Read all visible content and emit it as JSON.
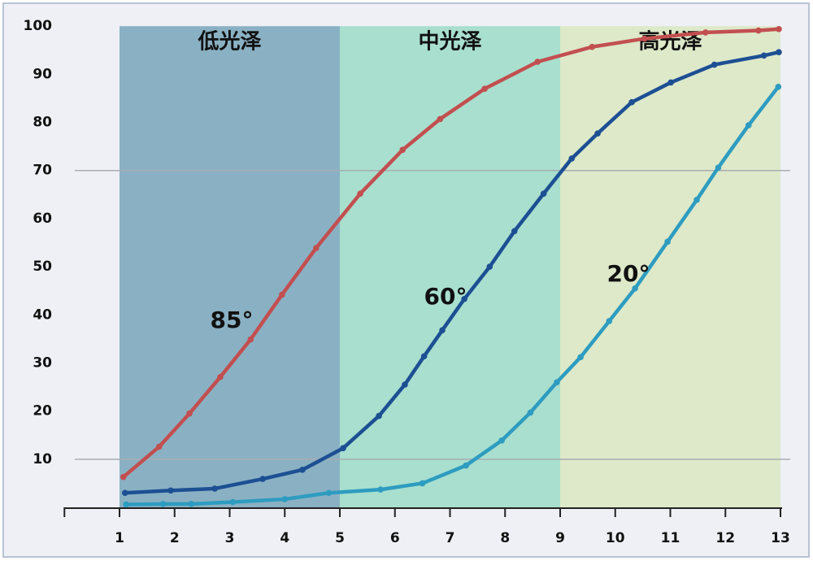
{
  "chart_data": {
    "type": "line",
    "regions": [
      {
        "label": "低光泽",
        "from": 1,
        "to": 5,
        "color": "#8ab1c3"
      },
      {
        "label": "中光泽",
        "from": 5,
        "to": 9,
        "color": "#a8dfce"
      },
      {
        "label": "高光泽",
        "from": 9,
        "to": 13,
        "color": "#dde9c9"
      }
    ],
    "series": [
      {
        "name": "85°",
        "color": "#c24f50",
        "x": [
          1.07,
          1.72,
          2.27,
          2.83,
          3.38,
          3.95,
          4.57,
          5.37,
          6.14,
          6.82,
          7.63,
          8.59,
          9.58,
          10.53,
          11.64,
          12.6,
          12.97
        ],
        "values": [
          6.3,
          12.6,
          19.5,
          27.1,
          34.9,
          44.2,
          53.9,
          65.2,
          74.3,
          80.7,
          87.0,
          92.6,
          95.7,
          97.4,
          98.7,
          99.1,
          99.4
        ]
      },
      {
        "name": "60°",
        "color": "#1d4f93",
        "x": [
          1.1,
          1.93,
          2.73,
          3.6,
          4.32,
          5.06,
          5.71,
          6.18,
          6.53,
          6.86,
          7.26,
          7.72,
          8.17,
          8.7,
          9.21,
          9.68,
          10.3,
          11.01,
          11.8,
          12.7,
          12.97
        ],
        "values": [
          3.0,
          3.5,
          3.9,
          5.9,
          7.8,
          12.3,
          19.0,
          25.5,
          31.4,
          36.8,
          43.3,
          50.0,
          57.4,
          65.2,
          72.5,
          77.7,
          84.2,
          88.3,
          92.0,
          93.9,
          94.6
        ]
      },
      {
        "name": "20°",
        "color": "#2e9cc0",
        "x": [
          1.12,
          1.79,
          2.3,
          3.06,
          4.0,
          4.8,
          5.74,
          6.5,
          7.29,
          7.94,
          8.46,
          8.94,
          9.37,
          9.89,
          10.36,
          10.95,
          11.48,
          11.87,
          12.42,
          12.96
        ],
        "values": [
          0.6,
          0.7,
          0.7,
          1.1,
          1.7,
          3.0,
          3.7,
          5.0,
          8.7,
          13.9,
          19.7,
          26.0,
          31.2,
          38.7,
          45.5,
          55.2,
          63.9,
          70.6,
          79.4,
          87.4
        ]
      }
    ],
    "xlim": [
      0,
      13
    ],
    "xticks": [
      1,
      2,
      3,
      4,
      5,
      6,
      7,
      8,
      9,
      10,
      11,
      12,
      13
    ],
    "ylim": [
      0,
      100
    ],
    "yticks": [
      10,
      20,
      30,
      40,
      50,
      60,
      70,
      80,
      90,
      100
    ],
    "reference_lines": [
      10,
      70
    ]
  }
}
